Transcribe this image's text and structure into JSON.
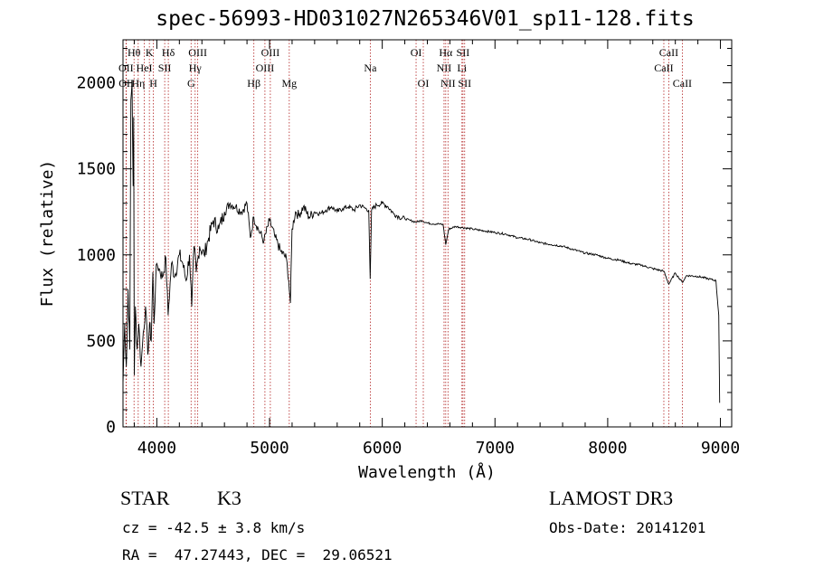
{
  "title": "spec-56993-HD031027N265346V01_sp11-128.fits",
  "info": {
    "object_class": "STAR",
    "subclass": "K3",
    "survey": "LAMOST DR3",
    "cz": "cz = -42.5 ± 3.8 km/s",
    "obs_date": "Obs-Date: 20141201",
    "radec": "RA =  47.27443, DEC =  29.06521"
  },
  "colors": {
    "line_marker": "#b22222",
    "spectrum": "#000000"
  },
  "chart_data": {
    "type": "line",
    "title": "spec-56993-HD031027N265346V01_sp11-128.fits",
    "xlabel": "Wavelength (Å)",
    "ylabel": "Flux (relative)",
    "xlim": [
      3700,
      9100
    ],
    "ylim": [
      0,
      2250
    ],
    "x_ticks": [
      4000,
      5000,
      6000,
      7000,
      8000,
      9000
    ],
    "y_ticks": [
      0,
      500,
      1000,
      1500,
      2000
    ],
    "series": [
      {
        "name": "spectrum",
        "x": [
          3700,
          3715,
          3730,
          3745,
          3760,
          3770,
          3780,
          3790,
          3795,
          3800,
          3810,
          3825,
          3840,
          3860,
          3880,
          3900,
          3920,
          3935,
          3950,
          3965,
          3975,
          3990,
          4000,
          4020,
          4050,
          4080,
          4100,
          4130,
          4160,
          4200,
          4230,
          4260,
          4290,
          4310,
          4330,
          4350,
          4380,
          4420,
          4460,
          4500,
          4550,
          4600,
          4650,
          4700,
          4750,
          4800,
          4830,
          4860,
          4900,
          4950,
          5000,
          5050,
          5100,
          5150,
          5170,
          5185,
          5200,
          5230,
          5260,
          5300,
          5350,
          5400,
          5450,
          5500,
          5550,
          5600,
          5650,
          5700,
          5750,
          5800,
          5850,
          5880,
          5893,
          5905,
          5950,
          6000,
          6050,
          6100,
          6150,
          6200,
          6250,
          6300,
          6350,
          6400,
          6450,
          6500,
          6540,
          6563,
          6590,
          6650,
          6700,
          6800,
          6900,
          7000,
          7100,
          7200,
          7300,
          7400,
          7500,
          7600,
          7700,
          7800,
          7900,
          8000,
          8100,
          8200,
          8300,
          8400,
          8498,
          8542,
          8600,
          8662,
          8700,
          8800,
          8900,
          8960,
          8985,
          8993
        ],
        "y": [
          250,
          600,
          350,
          800,
          450,
          1900,
          2000,
          1400,
          1800,
          300,
          700,
          450,
          600,
          350,
          550,
          700,
          420,
          600,
          500,
          900,
          600,
          850,
          950,
          920,
          870,
          980,
          650,
          950,
          880,
          1000,
          950,
          850,
          1000,
          700,
          1050,
          900,
          1050,
          1000,
          1100,
          1200,
          1150,
          1250,
          1300,
          1280,
          1250,
          1300,
          1100,
          1220,
          1150,
          1080,
          1200,
          1100,
          1020,
          980,
          850,
          720,
          1150,
          1250,
          1230,
          1280,
          1220,
          1250,
          1240,
          1260,
          1280,
          1250,
          1270,
          1280,
          1260,
          1290,
          1270,
          1260,
          860,
          1260,
          1290,
          1300,
          1280,
          1240,
          1220,
          1210,
          1200,
          1190,
          1200,
          1185,
          1180,
          1180,
          1175,
          1060,
          1150,
          1165,
          1160,
          1150,
          1140,
          1130,
          1120,
          1100,
          1090,
          1070,
          1060,
          1050,
          1030,
          1010,
          1000,
          980,
          970,
          950,
          940,
          920,
          905,
          830,
          895,
          840,
          880,
          875,
          860,
          850,
          650,
          140
        ]
      }
    ],
    "line_markers": [
      {
        "name": "Hθ",
        "wavelength": 3798,
        "row": 0
      },
      {
        "name": "OII",
        "wavelength": 3727,
        "row": 1
      },
      {
        "name": "OII",
        "wavelength": 3729,
        "row": 2
      },
      {
        "name": "Hη",
        "wavelength": 3835,
        "row": 2
      },
      {
        "name": "HeI",
        "wavelength": 3889,
        "row": 1
      },
      {
        "name": "K",
        "wavelength": 3934,
        "row": 0
      },
      {
        "name": "H",
        "wavelength": 3969,
        "row": 2
      },
      {
        "name": "SII",
        "wavelength": 4070,
        "row": 1
      },
      {
        "name": "Hδ",
        "wavelength": 4102,
        "row": 0
      },
      {
        "name": "G",
        "wavelength": 4304,
        "row": 2
      },
      {
        "name": "Hγ",
        "wavelength": 4340,
        "row": 1
      },
      {
        "name": "OIII",
        "wavelength": 4363,
        "row": 0
      },
      {
        "name": "Hβ",
        "wavelength": 4861,
        "row": 2
      },
      {
        "name": "OIII",
        "wavelength": 4959,
        "row": 1
      },
      {
        "name": "OIII",
        "wavelength": 5007,
        "row": 0
      },
      {
        "name": "Mg",
        "wavelength": 5175,
        "row": 2
      },
      {
        "name": "Na",
        "wavelength": 5894,
        "row": 1
      },
      {
        "name": "OI",
        "wavelength": 6300,
        "row": 0
      },
      {
        "name": "OI",
        "wavelength": 6364,
        "row": 2
      },
      {
        "name": "NII",
        "wavelength": 6548,
        "row": 1
      },
      {
        "name": "Hα",
        "wavelength": 6563,
        "row": 0
      },
      {
        "name": "NII",
        "wavelength": 6583,
        "row": 2
      },
      {
        "name": "Li",
        "wavelength": 6707,
        "row": 1
      },
      {
        "name": "SII",
        "wavelength": 6716,
        "row": 0
      },
      {
        "name": "SII",
        "wavelength": 6731,
        "row": 2
      },
      {
        "name": "CaII",
        "wavelength": 8498,
        "row": 1
      },
      {
        "name": "CaII",
        "wavelength": 8542,
        "row": 0
      },
      {
        "name": "CaII",
        "wavelength": 8662,
        "row": 2
      }
    ]
  }
}
